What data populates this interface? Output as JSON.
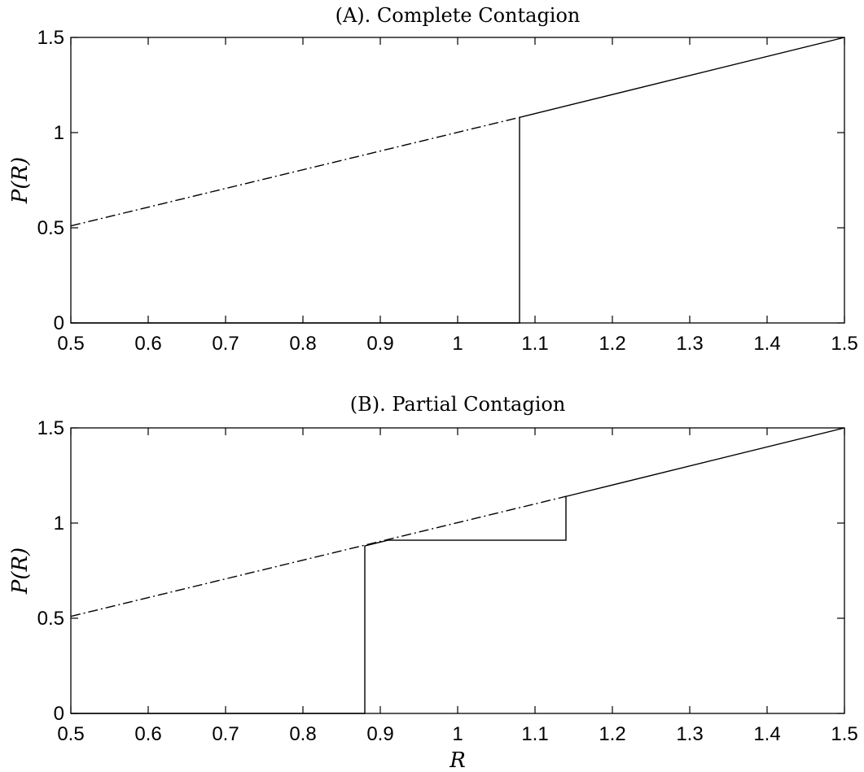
{
  "chart_data": [
    {
      "type": "line",
      "title": "(A). Complete Contagion",
      "xlabel": "",
      "ylabel": "P(R)",
      "xlim": [
        0.5,
        1.5
      ],
      "ylim": [
        0,
        1.5
      ],
      "xticks": [
        "0.5",
        "0.6",
        "0.7",
        "0.8",
        "0.9",
        "1",
        "1.1",
        "1.2",
        "1.3",
        "1.4",
        "1.5"
      ],
      "yticks": [
        "0",
        "0.5",
        "1",
        "1.5"
      ],
      "grid": false,
      "series": [
        {
          "style": "dash-dot",
          "x": [
            0.5,
            1.08
          ],
          "y": [
            0.51,
            1.08
          ]
        },
        {
          "style": "solid",
          "x": [
            0.5,
            1.08,
            1.08,
            1.5
          ],
          "y": [
            0,
            0,
            1.08,
            1.5
          ]
        }
      ]
    },
    {
      "type": "line",
      "title": "(B). Partial Contagion",
      "xlabel": "R",
      "ylabel": "P(R)",
      "xlim": [
        0.5,
        1.5
      ],
      "ylim": [
        0,
        1.5
      ],
      "xticks": [
        "0.5",
        "0.6",
        "0.7",
        "0.8",
        "0.9",
        "1",
        "1.1",
        "1.2",
        "1.3",
        "1.4",
        "1.5"
      ],
      "yticks": [
        "0",
        "0.5",
        "1",
        "1.5"
      ],
      "grid": false,
      "series": [
        {
          "style": "dash-dot",
          "x": [
            0.5,
            1.14
          ],
          "y": [
            0.51,
            1.14
          ]
        },
        {
          "style": "solid",
          "x": [
            0.5,
            0.88,
            0.88,
            0.91,
            1.14,
            1.14,
            1.5
          ],
          "y": [
            0,
            0,
            0.88,
            0.91,
            0.91,
            1.14,
            1.5
          ]
        }
      ]
    }
  ]
}
